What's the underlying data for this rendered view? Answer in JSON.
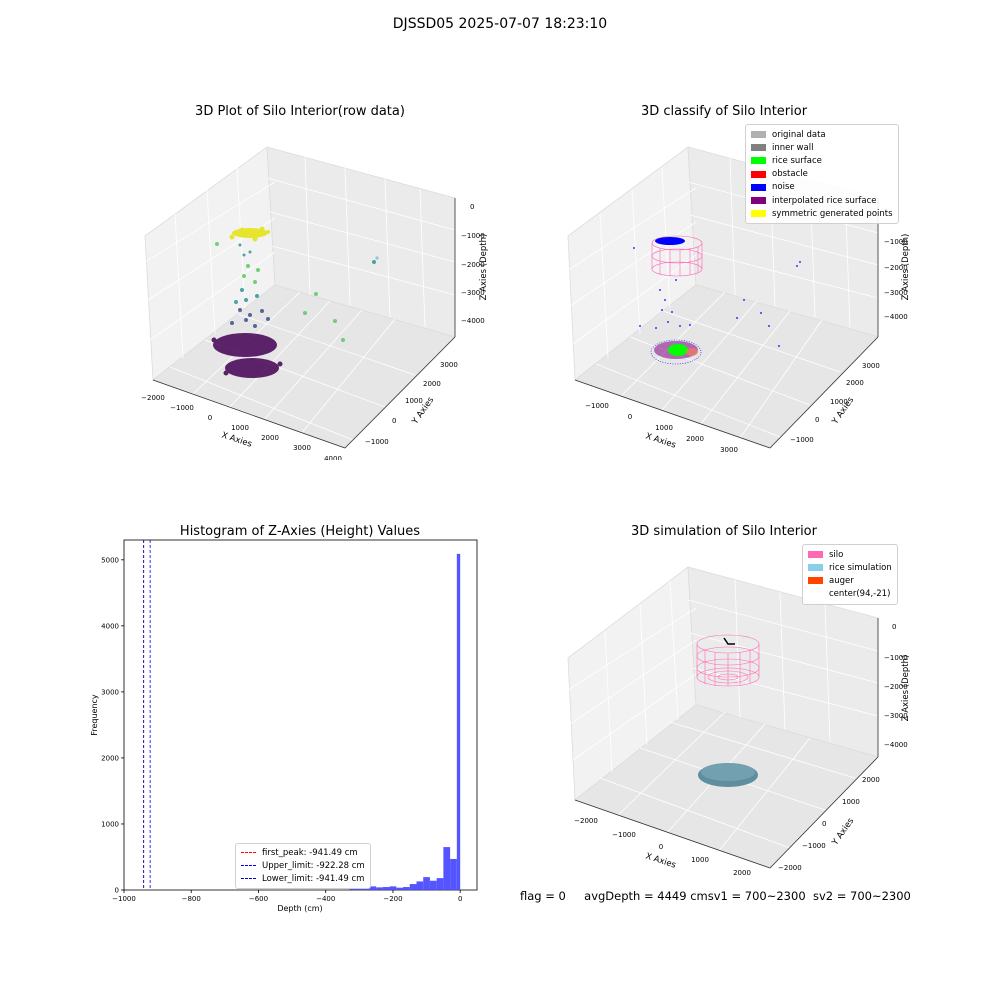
{
  "figure": {
    "title": "DJSSD05 2025-07-07 18:23:10",
    "footer": {
      "flag": "flag = 0",
      "avg_depth": "avgDepth = 4449 cm",
      "sv1": "sv1 = 700~2300",
      "sv2": "sv2 = 700~2300"
    }
  },
  "chart_data": [
    {
      "type": "scatter",
      "title": "3D Plot of Silo Interior(row data)",
      "xlabel": "X Axies",
      "ylabel": "Y Axies",
      "zlabel": "Z Axies (Depth)",
      "x_ticks": [
        "−2000",
        "−1000",
        "0",
        "1000",
        "2000",
        "3000",
        "4000"
      ],
      "y_ticks": [
        "−1000",
        "0",
        "1000",
        "2000",
        "3000"
      ],
      "z_ticks": [
        "0",
        "−1000",
        "−2000",
        "−3000",
        "−4000"
      ],
      "xlim": [
        -2000,
        4000
      ],
      "ylim": [
        -1000,
        3000
      ],
      "zlim": [
        -4500,
        0
      ],
      "colormap": "viridis",
      "notes": "point cloud: dense yellow cluster near top, vertical column of points, dense dark purple cluster at bottom, a few scattered green/teal points to the right"
    },
    {
      "type": "scatter",
      "title": "3D classify of Silo Interior",
      "zlabel": "Z Axies (Depth)",
      "xlabel": "X Axies",
      "ylabel": "Y Axies",
      "x_ticks": [
        "−1000",
        "0",
        "1000",
        "2000",
        "3000"
      ],
      "y_ticks": [
        "−1000",
        "0",
        "1000",
        "2000",
        "3000"
      ],
      "z_ticks": [
        "−1000",
        "−2000",
        "−3000",
        "−4000"
      ],
      "legend": {
        "position": "upper right",
        "entries": [
          {
            "label": "original data",
            "color": "#b0b0b0"
          },
          {
            "label": "inner wall",
            "color": "#808080"
          },
          {
            "label": "rice surface",
            "color": "#00ff00"
          },
          {
            "label": "obstacle",
            "color": "#ff0000"
          },
          {
            "label": "noise",
            "color": "#0000ff"
          },
          {
            "label": "interpolated rice surface",
            "color": "#800080"
          },
          {
            "label": "symmetric generated points",
            "color": "#ffff00"
          }
        ]
      }
    },
    {
      "type": "bar",
      "title": "Histogram of Z-Axies (Height) Values",
      "xlabel": "Depth (cm)",
      "ylabel": "Frequency",
      "xlim": [
        -1000,
        50
      ],
      "ylim": [
        0,
        5300
      ],
      "x_ticks": [
        -1000,
        -800,
        -600,
        -400,
        -200,
        0
      ],
      "y_ticks": [
        0,
        1000,
        2000,
        3000,
        4000,
        5000
      ],
      "bar_color": "#4c4cff",
      "bins": [
        {
          "x0": -330,
          "x1": -310,
          "value": 20
        },
        {
          "x0": -310,
          "x1": -290,
          "value": 20
        },
        {
          "x0": -290,
          "x1": -270,
          "value": 25
        },
        {
          "x0": -270,
          "x1": -250,
          "value": 55
        },
        {
          "x0": -250,
          "x1": -230,
          "value": 40
        },
        {
          "x0": -230,
          "x1": -210,
          "value": 45
        },
        {
          "x0": -210,
          "x1": -190,
          "value": 55
        },
        {
          "x0": -190,
          "x1": -170,
          "value": 35
        },
        {
          "x0": -170,
          "x1": -150,
          "value": 45
        },
        {
          "x0": -150,
          "x1": -130,
          "value": 90
        },
        {
          "x0": -130,
          "x1": -110,
          "value": 130
        },
        {
          "x0": -110,
          "x1": -90,
          "value": 195
        },
        {
          "x0": -90,
          "x1": -70,
          "value": 140
        },
        {
          "x0": -70,
          "x1": -50,
          "value": 180
        },
        {
          "x0": -50,
          "x1": -30,
          "value": 650
        },
        {
          "x0": -30,
          "x1": -10,
          "value": 470
        },
        {
          "x0": -10,
          "x1": 0,
          "value": 5090
        }
      ],
      "vlines": [
        {
          "x": -941.49,
          "color": "#ff0000",
          "style": "dashed"
        },
        {
          "x": -922.28,
          "color": "#0000ff",
          "style": "dashed"
        },
        {
          "x": -941.49,
          "color": "#0000cc",
          "style": "dashed"
        }
      ],
      "legend": {
        "position": "lower center",
        "entries": [
          {
            "label": "first_peak: -941.49 cm",
            "color": "#ff0000"
          },
          {
            "label": "Upper_limit: -922.28 cm",
            "color": "#0000ff"
          },
          {
            "label": "Lower_limit: -941.49 cm",
            "color": "#0000cc"
          }
        ]
      }
    },
    {
      "type": "scatter",
      "title": "3D simulation of Silo Interior",
      "xlabel": "X Axies",
      "ylabel": "Y Axies",
      "zlabel": "Z Axies (Depth)",
      "x_ticks": [
        "−2000",
        "−1000",
        "0",
        "1000",
        "2000"
      ],
      "y_ticks": [
        "−2000",
        "−1000",
        "0",
        "1000",
        "2000"
      ],
      "z_ticks": [
        "0",
        "−1000",
        "−2000",
        "−3000",
        "−4000"
      ],
      "legend": {
        "position": "upper right",
        "entries": [
          {
            "label": "silo",
            "color": "#ff69b4"
          },
          {
            "label": "rice simulation",
            "color": "#87ceeb"
          },
          {
            "label": "auger",
            "color": "#ff4500"
          },
          {
            "label": "center(94,-21)",
            "color": ""
          }
        ]
      }
    }
  ]
}
